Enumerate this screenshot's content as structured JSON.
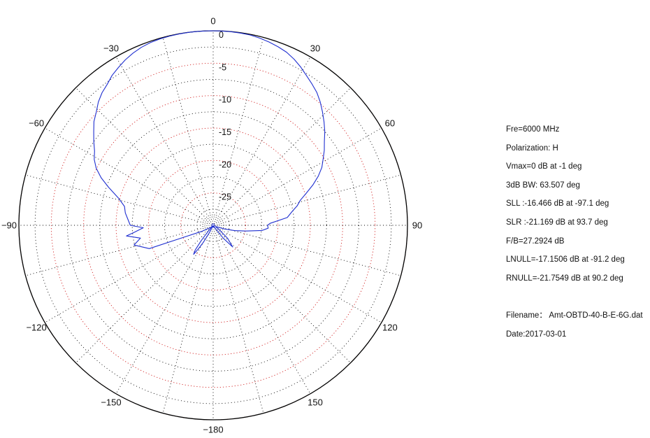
{
  "chart_data": {
    "type": "polar",
    "angle_unit": "deg",
    "angle_zero": "top",
    "angle_direction": "clockwise",
    "radial_unit": "dB",
    "radial_range": [
      -30,
      0
    ],
    "radial_ticks": [
      0,
      -5,
      -10,
      -15,
      -20,
      -25
    ],
    "radial_tick_labels": [
      "0",
      "-5",
      "-10",
      "-15",
      "-20",
      "-25"
    ],
    "angle_ticks": [
      0,
      30,
      60,
      90,
      120,
      150,
      180,
      -150,
      -120,
      -90,
      -60,
      -30
    ],
    "angle_tick_labels": [
      "0",
      "30",
      "60",
      "90",
      "120",
      "150",
      "−180",
      "−150",
      "−120",
      "−90",
      "−60",
      "−30"
    ],
    "grid": true,
    "colors": {
      "trace": "#1f2fd0",
      "outer_ring": "#000000",
      "grid_red": "#d22020",
      "grid_black": "#000000"
    },
    "series": [
      {
        "theta": [
          -110,
          -104,
          -100,
          -97,
          -95,
          -92,
          -90,
          -86,
          -82,
          -78,
          -74,
          -70,
          -67,
          -64,
          -61,
          -58,
          -55,
          -52,
          -49,
          -46,
          -43,
          -40,
          -37,
          -34,
          -31,
          -28,
          -25,
          -22,
          -19,
          -16,
          -13,
          -10,
          -7,
          -4,
          -1,
          2,
          5,
          8,
          11,
          14,
          17,
          20,
          23,
          26,
          29,
          32,
          35,
          38,
          41,
          44,
          47,
          50,
          53,
          56,
          59,
          62,
          65,
          68,
          71,
          74,
          77,
          80,
          84,
          88,
          90,
          93,
          96,
          100,
          104,
          108,
          112,
          118,
          125,
          132,
          138,
          142,
          146,
          150,
          154,
          156,
          158,
          162,
          167,
          172,
          176,
          180,
          -176,
          -172,
          -168,
          -164,
          -160,
          -156,
          -152,
          -150,
          -148,
          -146,
          -144,
          -142,
          -140,
          -136,
          -130,
          -124,
          -118,
          -112
        ],
        "r": [
          -19.5,
          -17.4,
          -18.6,
          -16.5,
          -17.8,
          -19.2,
          -17.2,
          -16.8,
          -16.3,
          -16.0,
          -14.8,
          -12.8,
          -11.2,
          -9.9,
          -9.0,
          -8.4,
          -7.5,
          -6.6,
          -5.6,
          -4.9,
          -4.0,
          -3.3,
          -2.8,
          -2.1,
          -1.6,
          -1.1,
          -0.7,
          -0.4,
          -0.2,
          -0.1,
          -0.05,
          -0.02,
          0,
          0,
          0,
          0,
          -0.02,
          -0.05,
          -0.1,
          -0.25,
          -0.45,
          -0.7,
          -1.0,
          -1.5,
          -2.1,
          -2.8,
          -3.4,
          -4.0,
          -4.8,
          -5.7,
          -6.6,
          -7.5,
          -8.5,
          -9.3,
          -10.2,
          -11.0,
          -12.1,
          -13.4,
          -14.8,
          -16.0,
          -16.7,
          -17.6,
          -18.5,
          -21.2,
          -21.6,
          -21.5,
          -22.4,
          -24.9,
          -26.6,
          -28.2,
          -29.3,
          -29.6,
          -29.0,
          -27.0,
          -25.5,
          -27.5,
          -29.5,
          -29.8,
          -29.6,
          -29.8,
          -29.95,
          -29.9,
          -29.7,
          -29.8,
          -29.9,
          -29.95,
          -29.9,
          -29.8,
          -29.7,
          -29.9,
          -29.8,
          -29.6,
          -28.5,
          -27.0,
          -25.8,
          -24.6,
          -25.3,
          -27.0,
          -29.0,
          -29.8,
          -29.5,
          -29.2,
          -28.0,
          -25.0
        ]
      }
    ]
  },
  "info": {
    "frequency": "Fre=6000 MHz",
    "polarization": "Polarization: H",
    "vmax": "Vmax=0 dB at -1 deg",
    "bw3db": "3dB BW: 63.507 deg",
    "sll": "SLL :-16.466 dB at  -97.1 deg",
    "slr": "SLR :-21.169 dB at  93.7 deg",
    "fb": "F/B=27.2924 dB",
    "lnull": "LNULL=-17.1506 dB at -91.2 deg",
    "rnull": "RNULL=-21.7549 dB at 90.2 deg",
    "filename": "Filename： Amt-OBTD-40-B-E-6G.dat",
    "date": "Date:2017-03-01"
  }
}
